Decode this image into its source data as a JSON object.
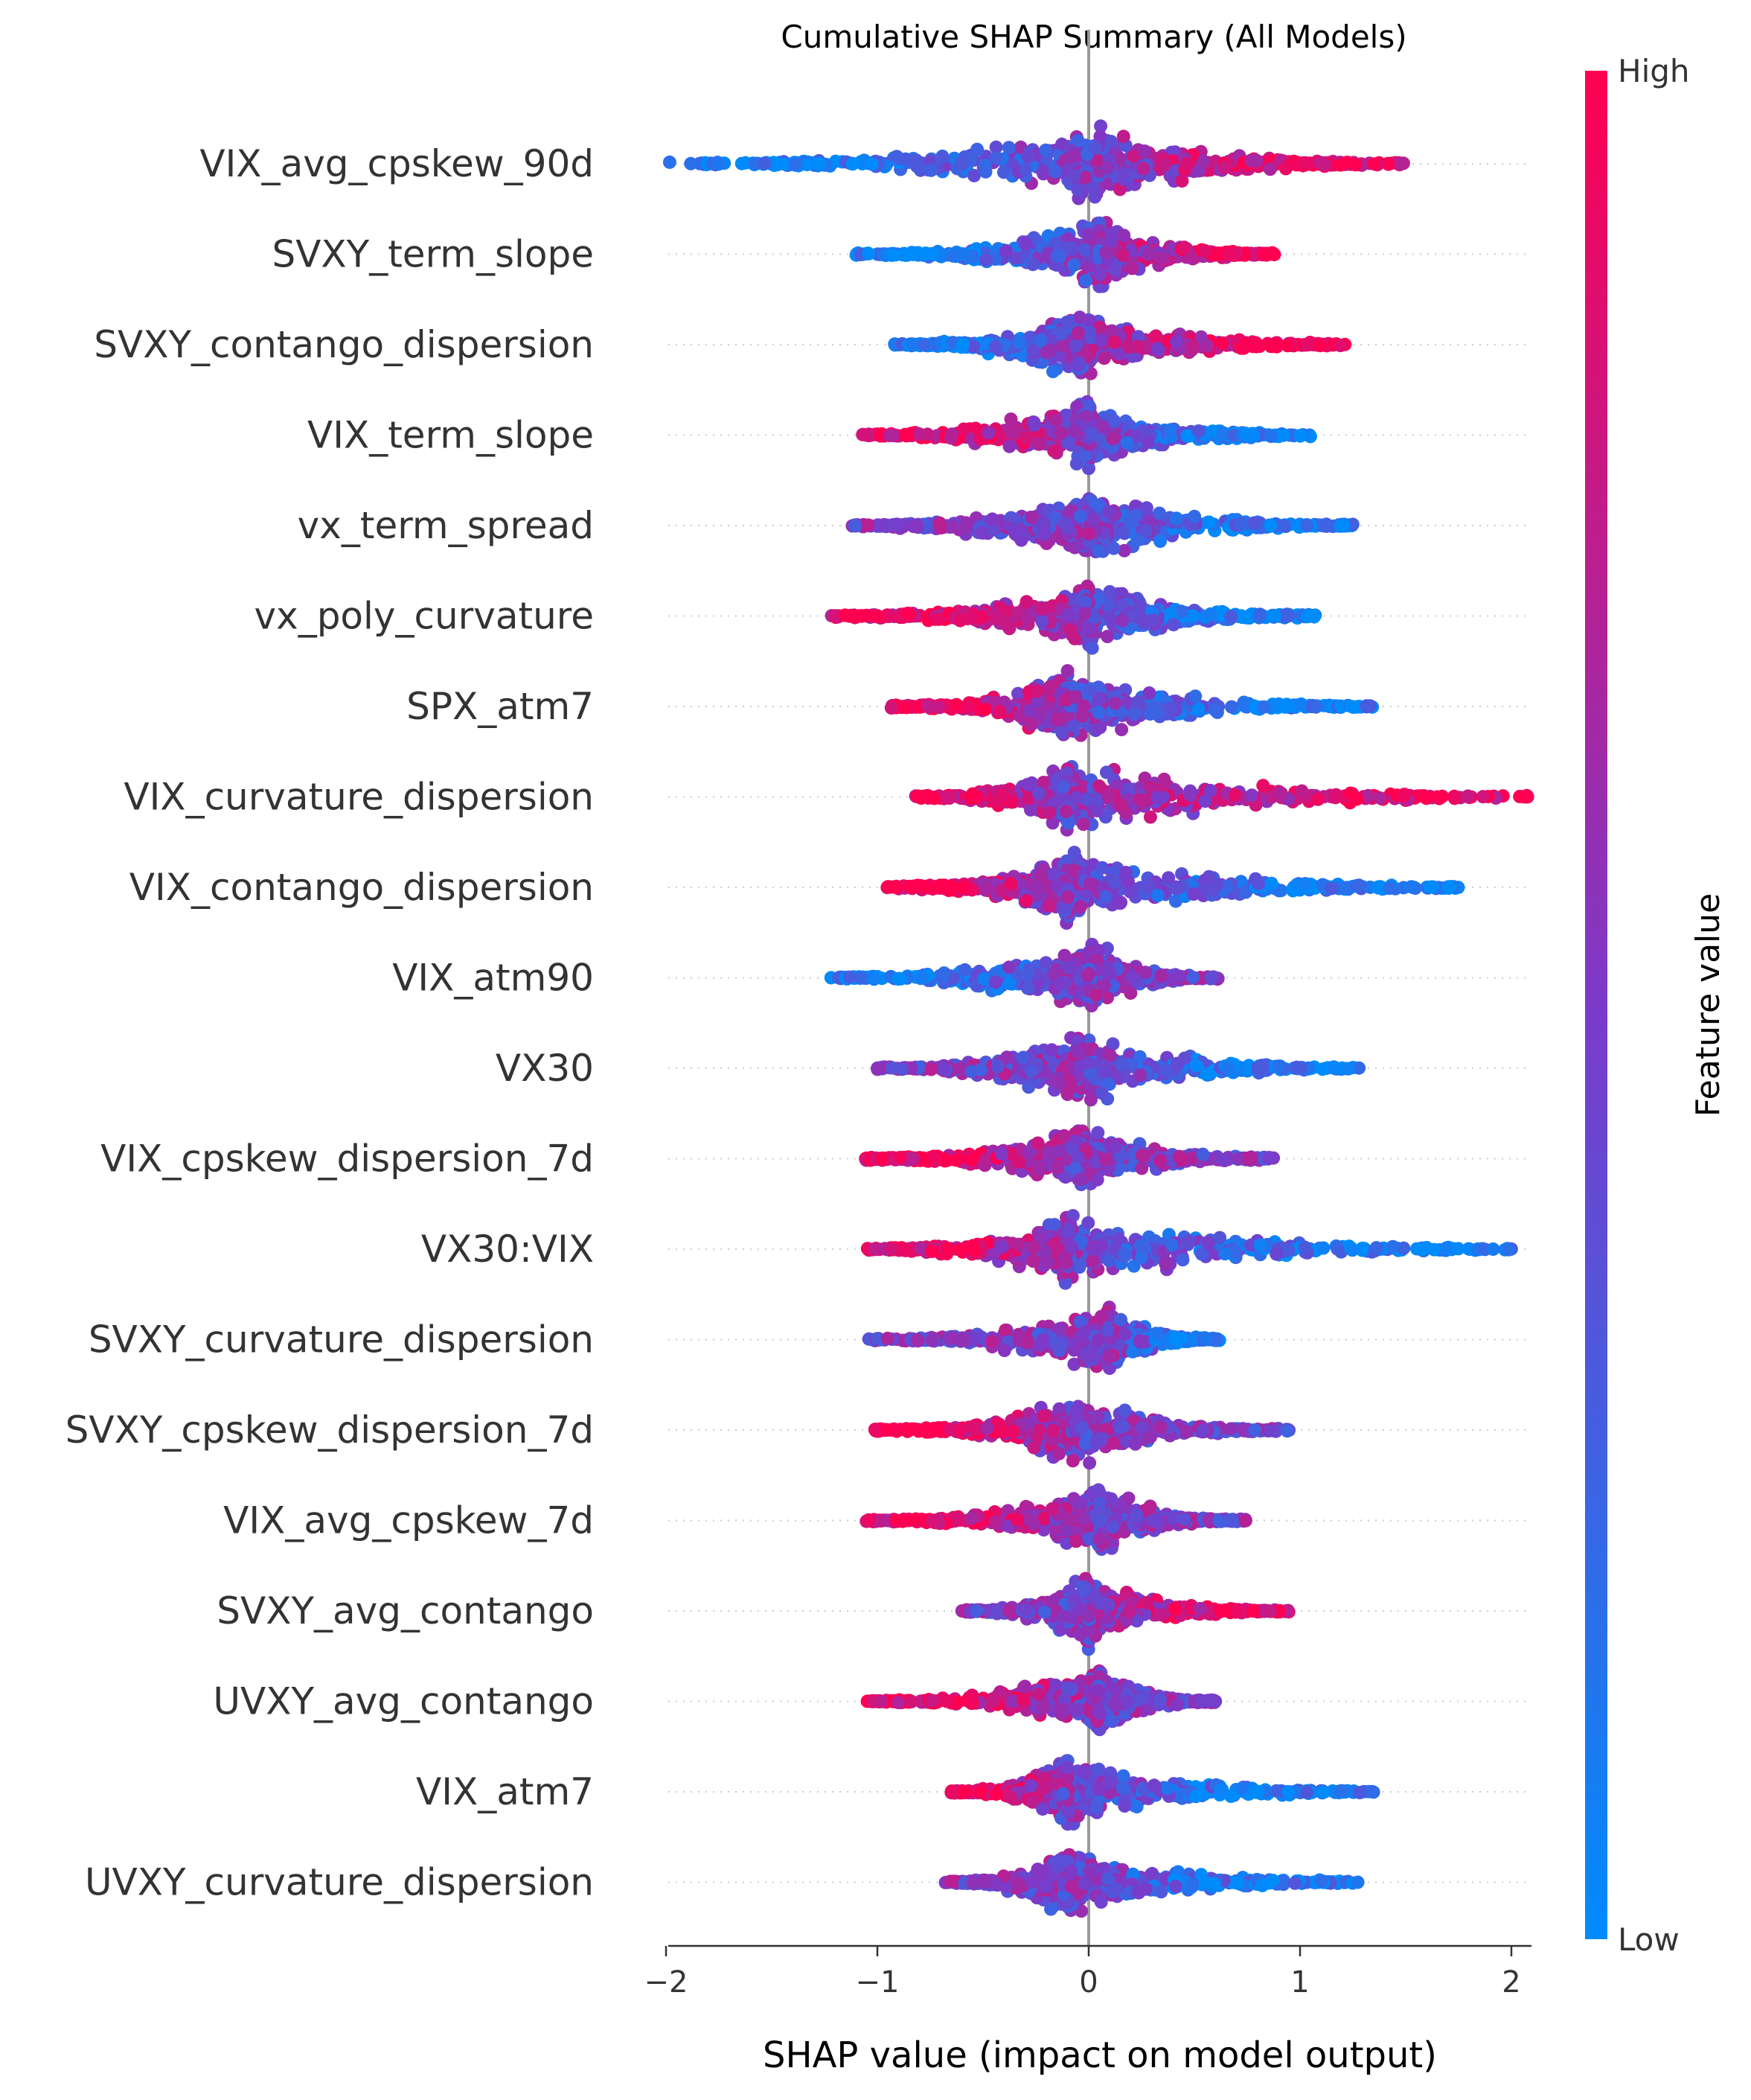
{
  "chart_data": {
    "type": "scatter",
    "subtype": "shap-beeswarm",
    "title": "Cumulative SHAP Summary (All Models)",
    "xlabel": "SHAP value (impact on model output)",
    "xlim": [
      -2.22,
      2.3
    ],
    "xticks": [
      {
        "value": -2,
        "label": "−2"
      },
      {
        "value": -1,
        "label": "−1"
      },
      {
        "value": 0,
        "label": "0"
      },
      {
        "value": 1,
        "label": "1"
      },
      {
        "value": 2,
        "label": "2"
      }
    ],
    "colorbar": {
      "label": "Feature value",
      "high_label": "High",
      "low_label": "Low",
      "high_color": "#ff0051",
      "mid_color": "#7c3ac9",
      "low_color": "#008bfb"
    },
    "zero_line_color": "#999999",
    "features": [
      {
        "name": "VIX_avg_cpskew_90d",
        "min": -2.0,
        "max": 1.5,
        "left": "low",
        "right": "high",
        "peak": 0.05
      },
      {
        "name": "SVXY_term_slope",
        "min": -1.1,
        "max": 0.88,
        "left": "low",
        "right": "high",
        "peak": 0.05
      },
      {
        "name": "SVXY_contango_dispersion",
        "min": -0.92,
        "max": 1.22,
        "left": "low",
        "right": "high",
        "peak": -0.05
      },
      {
        "name": "VIX_term_slope",
        "min": -1.08,
        "max": 1.05,
        "left": "high",
        "right": "low",
        "peak": 0.0
      },
      {
        "name": "vx_term_spread",
        "min": -1.12,
        "max": 1.27,
        "left": "mixed",
        "right": "low",
        "peak": 0.0
      },
      {
        "name": "vx_poly_curvature",
        "min": -1.22,
        "max": 1.08,
        "left": "high",
        "right": "low",
        "peak": 0.0
      },
      {
        "name": "SPX_atm7",
        "min": -0.95,
        "max": 1.35,
        "left": "high",
        "right": "low",
        "peak": -0.1
      },
      {
        "name": "VIX_curvature_dispersion",
        "min": -0.82,
        "max": 2.12,
        "left": "high",
        "right": "high",
        "peak": -0.1
      },
      {
        "name": "VIX_contango_dispersion",
        "min": -0.97,
        "max": 1.75,
        "left": "high",
        "right": "low",
        "peak": -0.1
      },
      {
        "name": "VIX_atm90",
        "min": -1.22,
        "max": 0.62,
        "left": "low",
        "right": "mixed",
        "peak": 0.0
      },
      {
        "name": "VX30",
        "min": -1.0,
        "max": 1.28,
        "left": "mixed",
        "right": "low",
        "peak": -0.05
      },
      {
        "name": "VIX_cpskew_dispersion_7d",
        "min": -1.08,
        "max": 0.88,
        "left": "high",
        "right": "mixed",
        "peak": -0.05
      },
      {
        "name": "VX30:VIX",
        "min": -1.05,
        "max": 2.03,
        "left": "high",
        "right": "low",
        "peak": -0.1
      },
      {
        "name": "SVXY_curvature_dispersion",
        "min": -1.05,
        "max": 0.62,
        "left": "mixed",
        "right": "low",
        "peak": 0.1
      },
      {
        "name": "SVXY_cpskew_dispersion_7d",
        "min": -1.02,
        "max": 0.95,
        "left": "high",
        "right": "mixed",
        "peak": -0.05
      },
      {
        "name": "VIX_avg_cpskew_7d",
        "min": -1.08,
        "max": 0.75,
        "left": "high",
        "right": "mixed",
        "peak": 0.05
      },
      {
        "name": "SVXY_avg_contango",
        "min": -0.6,
        "max": 0.95,
        "left": "mixed",
        "right": "high",
        "peak": 0.0
      },
      {
        "name": "UVXY_avg_contango",
        "min": -1.05,
        "max": 0.6,
        "left": "high",
        "right": "mixed",
        "peak": 0.05
      },
      {
        "name": "VIX_atm7",
        "min": -0.65,
        "max": 1.35,
        "left": "high",
        "right": "low",
        "peak": -0.1
      },
      {
        "name": "UVXY_curvature_dispersion",
        "min": -0.68,
        "max": 1.28,
        "left": "mixed",
        "right": "low",
        "peak": -0.1
      }
    ]
  }
}
